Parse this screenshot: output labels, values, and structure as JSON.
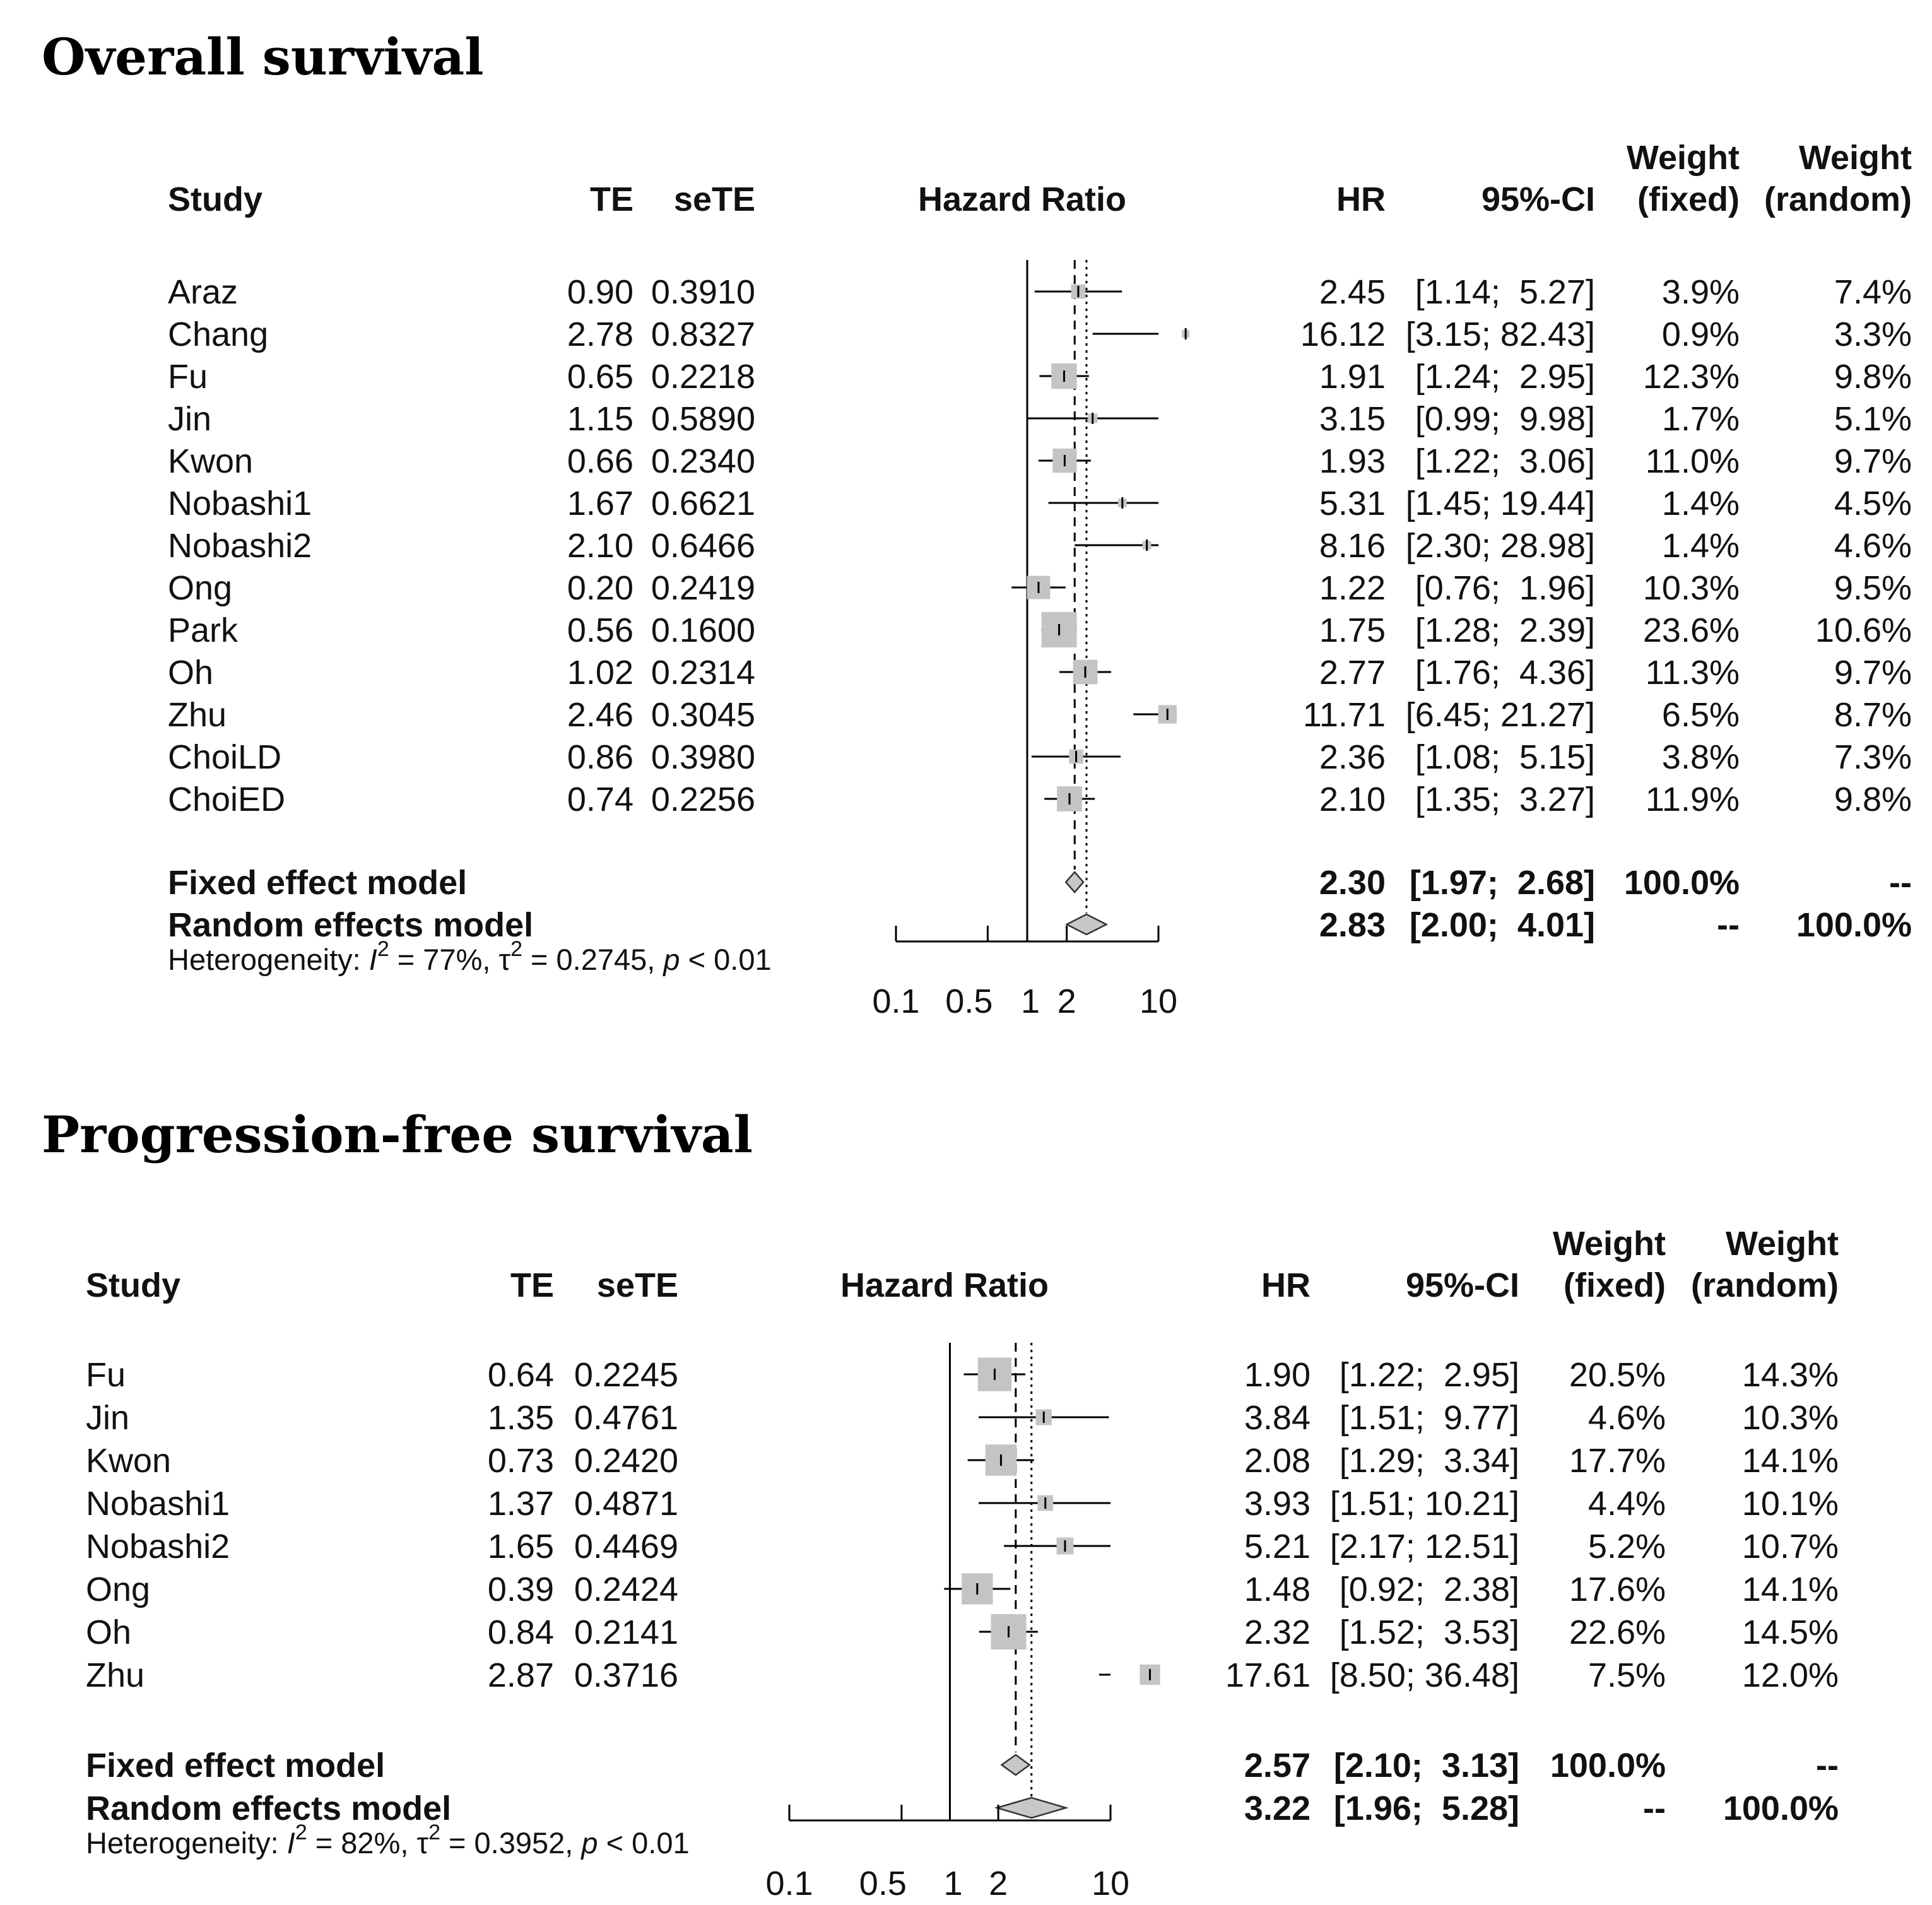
{
  "chart_data": [
    {
      "type": "forest",
      "title": "Overall survival",
      "columns": {
        "study": "Study",
        "te": "TE",
        "sete": "seTE",
        "plot": "Hazard Ratio",
        "hr": "HR",
        "ci": "95%-CI",
        "wf1": "Weight",
        "wf2": "(fixed)",
        "wr1": "Weight",
        "wr2": "(random)"
      },
      "studies": [
        {
          "study": "Araz",
          "te": "0.90",
          "sete": "0.3910",
          "hr": 2.45,
          "lo": 1.14,
          "hi": 5.27,
          "hr_text": "2.45",
          "ci_text": "[1.14;  5.27]",
          "w_fixed": "3.9%",
          "w_random": "7.4%",
          "wf": 3.9
        },
        {
          "study": "Chang",
          "te": "2.78",
          "sete": "0.8327",
          "hr": 16.12,
          "lo": 3.15,
          "hi": 82.43,
          "hr_text": "16.12",
          "ci_text": "[3.15; 82.43]",
          "w_fixed": "0.9%",
          "w_random": "3.3%",
          "wf": 0.9
        },
        {
          "study": "Fu",
          "te": "0.65",
          "sete": "0.2218",
          "hr": 1.91,
          "lo": 1.24,
          "hi": 2.95,
          "hr_text": "1.91",
          "ci_text": "[1.24;  2.95]",
          "w_fixed": "12.3%",
          "w_random": "9.8%",
          "wf": 12.3
        },
        {
          "study": "Jin",
          "te": "1.15",
          "sete": "0.5890",
          "hr": 3.15,
          "lo": 0.99,
          "hi": 9.98,
          "hr_text": "3.15",
          "ci_text": "[0.99;  9.98]",
          "w_fixed": "1.7%",
          "w_random": "5.1%",
          "wf": 1.7
        },
        {
          "study": "Kwon",
          "te": "0.66",
          "sete": "0.2340",
          "hr": 1.93,
          "lo": 1.22,
          "hi": 3.06,
          "hr_text": "1.93",
          "ci_text": "[1.22;  3.06]",
          "w_fixed": "11.0%",
          "w_random": "9.7%",
          "wf": 11.0
        },
        {
          "study": "Nobashi1",
          "te": "1.67",
          "sete": "0.6621",
          "hr": 5.31,
          "lo": 1.45,
          "hi": 19.44,
          "hr_text": "5.31",
          "ci_text": "[1.45; 19.44]",
          "w_fixed": "1.4%",
          "w_random": "4.5%",
          "wf": 1.4
        },
        {
          "study": "Nobashi2",
          "te": "2.10",
          "sete": "0.6466",
          "hr": 8.16,
          "lo": 2.3,
          "hi": 28.98,
          "hr_text": "8.16",
          "ci_text": "[2.30; 28.98]",
          "w_fixed": "1.4%",
          "w_random": "4.6%",
          "wf": 1.4
        },
        {
          "study": "Ong",
          "te": "0.20",
          "sete": "0.2419",
          "hr": 1.22,
          "lo": 0.76,
          "hi": 1.96,
          "hr_text": "1.22",
          "ci_text": "[0.76;  1.96]",
          "w_fixed": "10.3%",
          "w_random": "9.5%",
          "wf": 10.3
        },
        {
          "study": "Park",
          "te": "0.56",
          "sete": "0.1600",
          "hr": 1.75,
          "lo": 1.28,
          "hi": 2.39,
          "hr_text": "1.75",
          "ci_text": "[1.28;  2.39]",
          "w_fixed": "23.6%",
          "w_random": "10.6%",
          "wf": 23.6
        },
        {
          "study": "Oh",
          "te": "1.02",
          "sete": "0.2314",
          "hr": 2.77,
          "lo": 1.76,
          "hi": 4.36,
          "hr_text": "2.77",
          "ci_text": "[1.76;  4.36]",
          "w_fixed": "11.3%",
          "w_random": "9.7%",
          "wf": 11.3
        },
        {
          "study": "Zhu",
          "te": "2.46",
          "sete": "0.3045",
          "hr": 11.71,
          "lo": 6.45,
          "hi": 21.27,
          "hr_text": "11.71",
          "ci_text": "[6.45; 21.27]",
          "w_fixed": "6.5%",
          "w_random": "8.7%",
          "wf": 6.5
        },
        {
          "study": "ChoiLD",
          "te": "0.86",
          "sete": "0.3980",
          "hr": 2.36,
          "lo": 1.08,
          "hi": 5.15,
          "hr_text": "2.36",
          "ci_text": "[1.08;  5.15]",
          "w_fixed": "3.8%",
          "w_random": "7.3%",
          "wf": 3.8
        },
        {
          "study": "ChoiED",
          "te": "0.74",
          "sete": "0.2256",
          "hr": 2.1,
          "lo": 1.35,
          "hi": 3.27,
          "hr_text": "2.10",
          "ci_text": "[1.35;  3.27]",
          "w_fixed": "11.9%",
          "w_random": "9.8%",
          "wf": 11.9
        }
      ],
      "models": [
        {
          "label": "Fixed effect model",
          "hr": 2.3,
          "lo": 1.97,
          "hi": 2.68,
          "hr_text": "2.30",
          "ci_text": "[1.97;  2.68]",
          "w_fixed": "100.0%",
          "w_random": "--"
        },
        {
          "label": "Random effects model",
          "hr": 2.83,
          "lo": 2.0,
          "hi": 4.01,
          "hr_text": "2.83",
          "ci_text": "[2.00;  4.01]",
          "w_fixed": "--",
          "w_random": "100.0%"
        }
      ],
      "heterogeneity": {
        "prefix": "Heterogeneity: ",
        "i_symbol": "I",
        "sq": "2",
        "i2_value": " = 77%, ",
        "tau": "τ",
        "tau2_value": " = 0.2745, ",
        "p": "p",
        "p_value": " < 0.01"
      },
      "axis": {
        "scale": "log",
        "range": [
          0.1,
          10
        ],
        "ticks": [
          0.1,
          0.5,
          1,
          2,
          10
        ],
        "tick_labels": [
          "0.1",
          "0.5",
          "1",
          "2",
          "10"
        ]
      }
    },
    {
      "type": "forest",
      "title": "Progression-free survival",
      "columns": {
        "study": "Study",
        "te": "TE",
        "sete": "seTE",
        "plot": "Hazard Ratio",
        "hr": "HR",
        "ci": "95%-CI",
        "wf1": "Weight",
        "wf2": "(fixed)",
        "wr1": "Weight",
        "wr2": "(random)"
      },
      "studies": [
        {
          "study": "Fu",
          "te": "0.64",
          "sete": "0.2245",
          "hr": 1.9,
          "lo": 1.22,
          "hi": 2.95,
          "hr_text": "1.90",
          "ci_text": "[1.22;  2.95]",
          "w_fixed": "20.5%",
          "w_random": "14.3%",
          "wf": 20.5
        },
        {
          "study": "Jin",
          "te": "1.35",
          "sete": "0.4761",
          "hr": 3.84,
          "lo": 1.51,
          "hi": 9.77,
          "hr_text": "3.84",
          "ci_text": "[1.51;  9.77]",
          "w_fixed": "4.6%",
          "w_random": "10.3%",
          "wf": 4.6
        },
        {
          "study": "Kwon",
          "te": "0.73",
          "sete": "0.2420",
          "hr": 2.08,
          "lo": 1.29,
          "hi": 3.34,
          "hr_text": "2.08",
          "ci_text": "[1.29;  3.34]",
          "w_fixed": "17.7%",
          "w_random": "14.1%",
          "wf": 17.7
        },
        {
          "study": "Nobashi1",
          "te": "1.37",
          "sete": "0.4871",
          "hr": 3.93,
          "lo": 1.51,
          "hi": 10.21,
          "hr_text": "3.93",
          "ci_text": "[1.51; 10.21]",
          "w_fixed": "4.4%",
          "w_random": "10.1%",
          "wf": 4.4
        },
        {
          "study": "Nobashi2",
          "te": "1.65",
          "sete": "0.4469",
          "hr": 5.21,
          "lo": 2.17,
          "hi": 12.51,
          "hr_text": "5.21",
          "ci_text": "[2.17; 12.51]",
          "w_fixed": "5.2%",
          "w_random": "10.7%",
          "wf": 5.2
        },
        {
          "study": "Ong",
          "te": "0.39",
          "sete": "0.2424",
          "hr": 1.48,
          "lo": 0.92,
          "hi": 2.38,
          "hr_text": "1.48",
          "ci_text": "[0.92;  2.38]",
          "w_fixed": "17.6%",
          "w_random": "14.1%",
          "wf": 17.6
        },
        {
          "study": "Oh",
          "te": "0.84",
          "sete": "0.2141",
          "hr": 2.32,
          "lo": 1.52,
          "hi": 3.53,
          "hr_text": "2.32",
          "ci_text": "[1.52;  3.53]",
          "w_fixed": "22.6%",
          "w_random": "14.5%",
          "wf": 22.6
        },
        {
          "study": "Zhu",
          "te": "2.87",
          "sete": "0.3716",
          "hr": 17.61,
          "lo": 8.5,
          "hi": 36.48,
          "hr_text": "17.61",
          "ci_text": "[8.50; 36.48]",
          "w_fixed": "7.5%",
          "w_random": "12.0%",
          "wf": 7.5
        }
      ],
      "models": [
        {
          "label": "Fixed effect model",
          "hr": 2.57,
          "lo": 2.1,
          "hi": 3.13,
          "hr_text": "2.57",
          "ci_text": "[2.10;  3.13]",
          "w_fixed": "100.0%",
          "w_random": "--"
        },
        {
          "label": "Random effects model",
          "hr": 3.22,
          "lo": 1.96,
          "hi": 5.28,
          "hr_text": "3.22",
          "ci_text": "[1.96;  5.28]",
          "w_fixed": "--",
          "w_random": "100.0%"
        }
      ],
      "heterogeneity": {
        "prefix": "Heterogeneity: ",
        "i_symbol": "I",
        "sq": "2",
        "i2_value": " = 82%, ",
        "tau": "τ",
        "tau2_value": " = 0.3952, ",
        "p": "p",
        "p_value": " < 0.01"
      },
      "axis": {
        "scale": "log",
        "range": [
          0.1,
          10
        ],
        "ticks": [
          0.1,
          0.5,
          1,
          2,
          10
        ],
        "tick_labels": [
          "0.1",
          "0.5",
          "1",
          "2",
          "10"
        ]
      }
    }
  ]
}
